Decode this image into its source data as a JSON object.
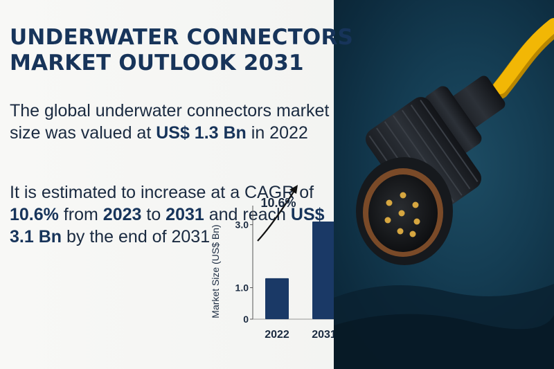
{
  "headline": {
    "line1": "UNDERWATER CONNECTORS",
    "line2": "MARKET OUTLOOK 2031"
  },
  "intro": {
    "text1": "The global underwater connectors market size was valued at ",
    "value": "US$ 1.3 Bn",
    "text2": " in 2022"
  },
  "forecast": {
    "t1": "It is estimated to increase at a CAGR of ",
    "cagr": "10.6%",
    "t2": " from ",
    "start_year": "2023",
    "t3": " to ",
    "end_year": "2031",
    "t4": " and reach ",
    "target": "US$ 3.1 Bn",
    "t5": " by the end of 2031"
  },
  "chart_data": {
    "type": "bar",
    "categories": [
      "2022",
      "2031"
    ],
    "values": [
      1.3,
      3.1
    ],
    "ylabel": "Market Size (US$ Bn)",
    "yticks": [
      0,
      1.0,
      3.0
    ],
    "ytick_labels": [
      "0",
      "1.0",
      "3.0"
    ],
    "ylim": [
      0,
      4.2
    ],
    "annotation": "10.6%",
    "grid": false,
    "legend": "none",
    "bar_color": "#1a3966"
  },
  "colors": {
    "title": "#17345a",
    "accent_cable": "#f2b705",
    "background_left": "#f7f7f5",
    "background_right": "#143c52"
  },
  "image": {
    "subject": "underwater-connector-icon"
  }
}
